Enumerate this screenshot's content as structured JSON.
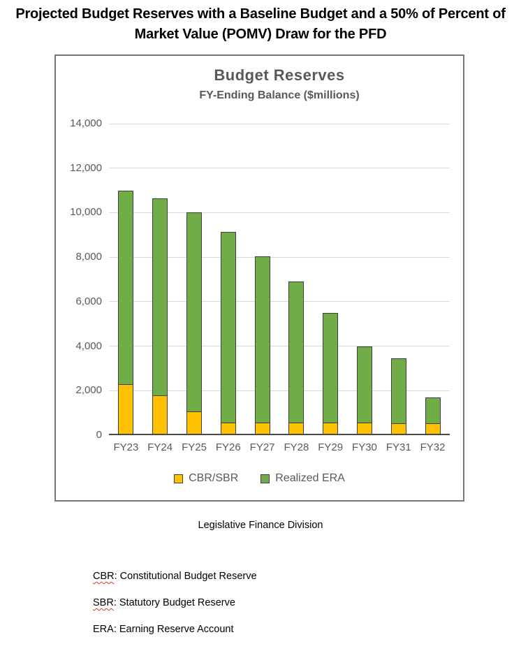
{
  "page": {
    "title_line1": "Projected Budget Reserves with a Baseline Budget and a 50% of Percent of",
    "title_line2": "Market Value (POMV) Draw for the PFD",
    "caption": "Legislative Finance Division",
    "notes": [
      {
        "abbr": "CBR",
        "rest": ": Constitutional Budget Reserve",
        "misspelled": true
      },
      {
        "abbr": "SBR",
        "rest": ": Statutory Budget Reserve",
        "misspelled": true
      },
      {
        "abbr": "ERA",
        "rest": ": Earning Reserve Account",
        "misspelled": false
      }
    ]
  },
  "chart_data": {
    "type": "bar",
    "stacked": true,
    "title": "Budget Reserves",
    "subtitle": "FY-Ending Balance ($millions)",
    "categories": [
      "FY23",
      "FY24",
      "FY25",
      "FY26",
      "FY27",
      "FY28",
      "FY29",
      "FY30",
      "FY31",
      "FY32"
    ],
    "series": [
      {
        "name": "CBR/SBR",
        "color": "#FFC000",
        "values": [
          2250,
          1750,
          1000,
          500,
          500,
          500,
          500,
          500,
          500,
          500
        ]
      },
      {
        "name": "Realized ERA",
        "color": "#70AD47",
        "values": [
          8750,
          8900,
          9000,
          8650,
          7550,
          6400,
          5000,
          3500,
          2950,
          1200
        ]
      }
    ],
    "totals": [
      11000,
      10650,
      10000,
      9150,
      8050,
      6900,
      5500,
      4000,
      3450,
      1700
    ],
    "ylim": [
      0,
      14000
    ],
    "ytick_step": 2000,
    "ytick_labels": [
      "0",
      "2,000",
      "4,000",
      "6,000",
      "8,000",
      "10,000",
      "12,000",
      "14,000"
    ],
    "grid": true,
    "legend_position": "bottom"
  },
  "colors": {
    "bar_border": "#404040",
    "gridline": "#d9d9d9",
    "axis_text": "#595959",
    "chart_border": "#767676",
    "squiggle": "#d2392e"
  }
}
